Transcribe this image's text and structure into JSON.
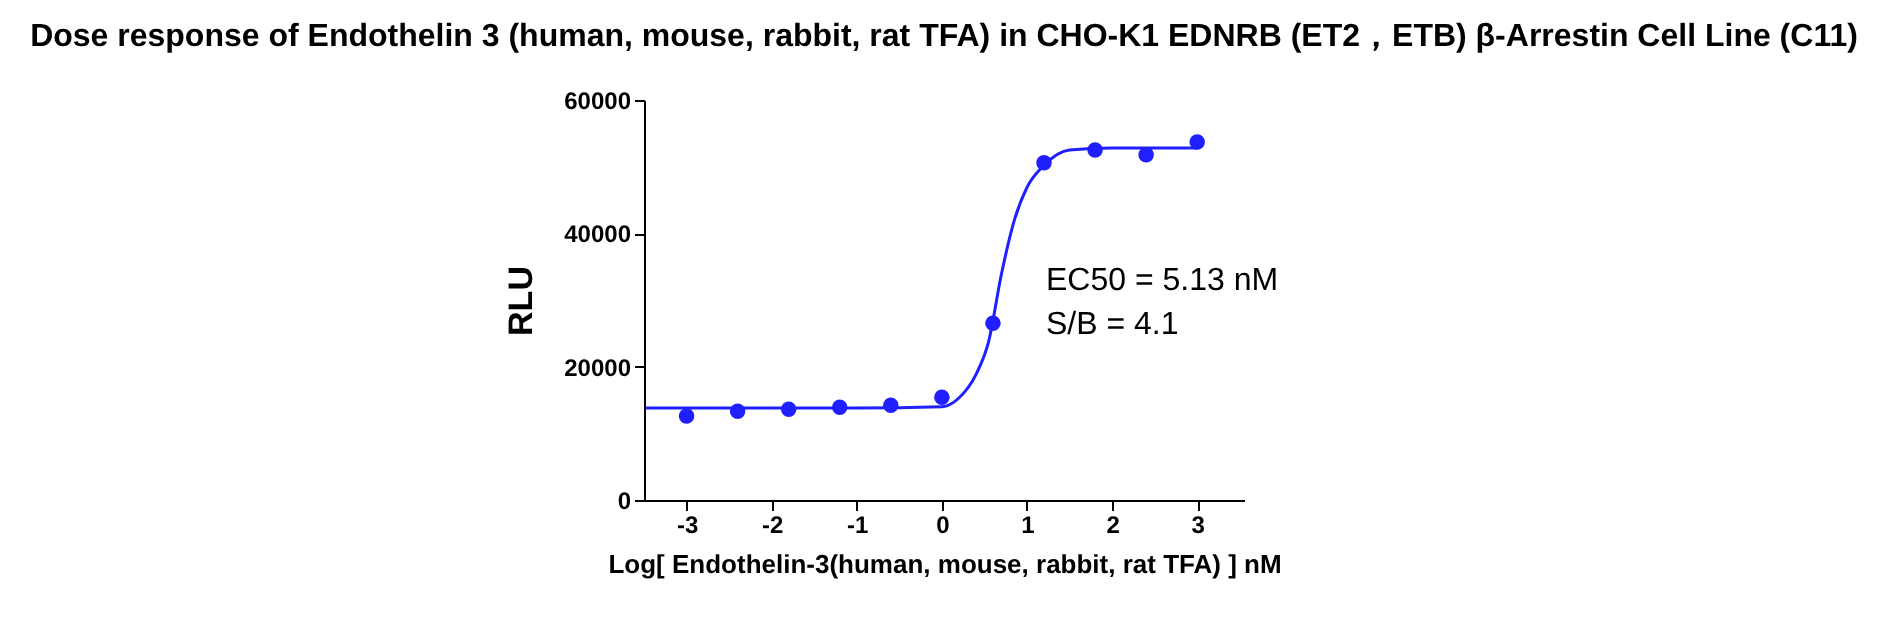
{
  "chart_data": {
    "type": "scatter",
    "title": "Dose response of Endothelin 3 (human, mouse, rabbit, rat TFA) in CHO-K1 EDNRB (ET2，ETB) β-Arrestin Cell Line (C11)",
    "xlabel": "Log[ Endothelin-3(human, mouse, rabbit, rat TFA) ] nM",
    "ylabel": "RLU",
    "series": [
      {
        "type": "scatter",
        "color": "#1f1fff",
        "marker": "circle",
        "x": [
          -3,
          -2.4,
          -1.8,
          -1.2,
          -0.6,
          0,
          0.6,
          1.2,
          1.8,
          2.4,
          3
        ],
        "values": [
          12600,
          13300,
          13600,
          13900,
          14200,
          15400,
          26500,
          50600,
          52500,
          51800,
          53700
        ]
      },
      {
        "type": "line",
        "color": "#1f1fff",
        "line_style": "solid",
        "x": [
          -3.48,
          -1,
          0,
          0.2,
          0.4,
          0.55,
          0.7,
          0.85,
          1.0,
          1.2,
          1.5,
          2,
          3
        ],
        "values": [
          13800,
          13800,
          14000,
          15300,
          18800,
          23800,
          33900,
          41900,
          46900,
          50200,
          52500,
          52800,
          52800
        ]
      }
    ],
    "annotations": [
      "EC50 = 5.13 nM",
      "S/B = 4.1"
    ],
    "xlim": [
      -3.5,
      3.55
    ],
    "xticks": [
      -3,
      -2,
      -1,
      0,
      1,
      2,
      3
    ],
    "ylim": [
      0,
      60000
    ],
    "yticks": [
      0,
      20000,
      40000,
      60000
    ],
    "grid": false,
    "legend": false
  }
}
